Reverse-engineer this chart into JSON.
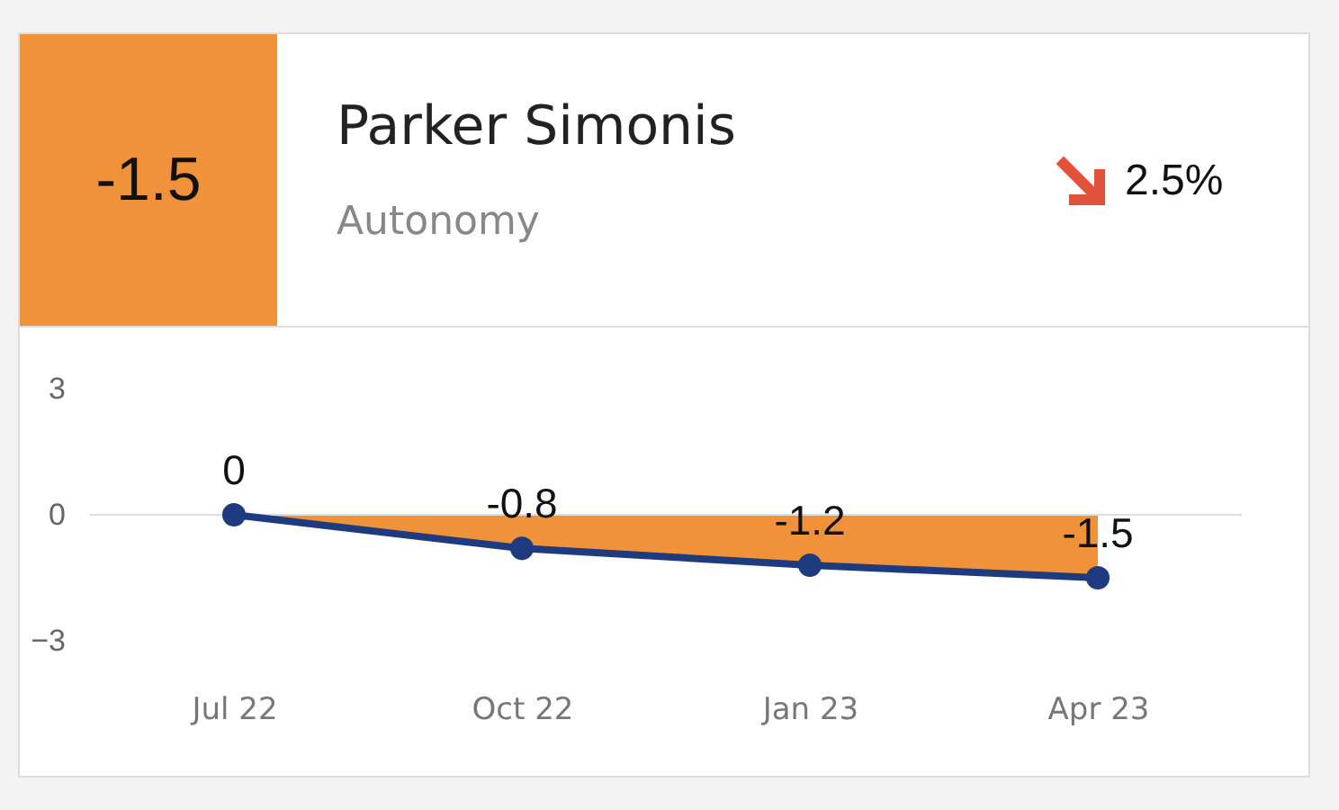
{
  "chart_data": {
    "type": "line",
    "title": "Parker Simonis",
    "subtitle": "Autonomy",
    "annotations": [
      "-1.5",
      "2.5%"
    ],
    "categories": [
      "Jul 22",
      "Oct 22",
      "Jan 23",
      "Apr 23"
    ],
    "series": [
      {
        "color": "#1d3b7e",
        "values": [
          0,
          -0.8,
          -1.2,
          -1.5
        ],
        "lower": [
          0,
          -0.8,
          -1.2,
          -1.5
        ],
        "upper": [
          0,
          0,
          0,
          0
        ]
      }
    ],
    "ylim": [
      -3,
      3
    ],
    "yticks": [
      -3,
      0,
      3
    ],
    "marker": "circle",
    "data_labels": true,
    "ref_lines": [
      {
        "axis": "y",
        "value": 0,
        "color": "#dddddd"
      }
    ]
  }
}
